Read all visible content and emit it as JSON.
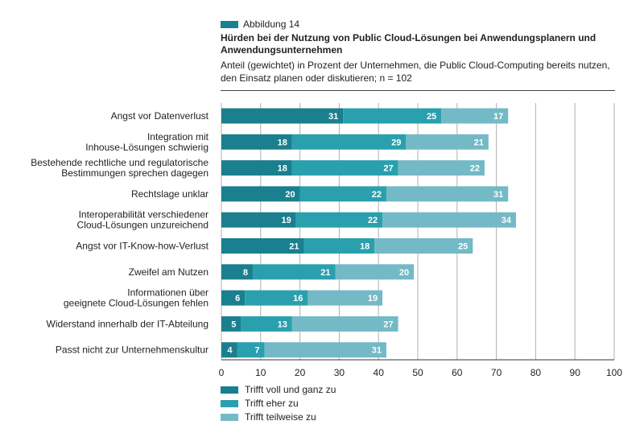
{
  "figure_label": "Abbildung 14",
  "colors": {
    "accent": "#1a7f8e",
    "series": [
      "#1a7f8e",
      "#2aa0ae",
      "#74b9c6"
    ],
    "grid": "#b0b0b0",
    "axis": "#333333"
  },
  "chart_data": {
    "type": "bar",
    "orientation": "horizontal",
    "stacked": true,
    "title": "Hürden bei der Nutzung von Public Cloud-Lösungen bei Anwendungsplanern und Anwendungsunternehmen",
    "subtitle": "Anteil (gewichtet) in Prozent der Unternehmen, die Public Cloud-Computing bereits nutzen, den Einsatz planen oder diskutieren; n = 102",
    "categories": [
      [
        "Angst vor Datenverlust"
      ],
      [
        "Integration mit",
        "Inhouse-Lösungen schwierig"
      ],
      [
        "Bestehende rechtliche und regulatorische",
        "Bestimmungen sprechen dagegen"
      ],
      [
        "Rechtslage unklar"
      ],
      [
        "Interoperabilität verschiedener",
        "Cloud-Lösungen unzureichend"
      ],
      [
        "Angst vor IT-Know-how-Verlust"
      ],
      [
        "Zweifel am Nutzen"
      ],
      [
        "Informationen über",
        "geeignete Cloud-Lösungen fehlen"
      ],
      [
        "Widerstand innerhalb der IT-Abteilung"
      ],
      [
        "Passt nicht zur Unternehmenskultur"
      ]
    ],
    "series": [
      {
        "name": "Trifft voll und ganz zu",
        "values": [
          31,
          18,
          18,
          20,
          19,
          21,
          8,
          6,
          5,
          4
        ]
      },
      {
        "name": "Trifft eher zu",
        "values": [
          25,
          29,
          27,
          22,
          22,
          18,
          21,
          16,
          13,
          7
        ]
      },
      {
        "name": "Trifft teilweise zu",
        "values": [
          17,
          21,
          22,
          31,
          34,
          25,
          20,
          19,
          27,
          31
        ]
      }
    ],
    "xlim": [
      0,
      100
    ],
    "xticks": [
      0,
      10,
      20,
      30,
      40,
      50,
      60,
      70,
      80,
      90,
      100
    ],
    "grid": true,
    "legend": "bottom-left"
  }
}
